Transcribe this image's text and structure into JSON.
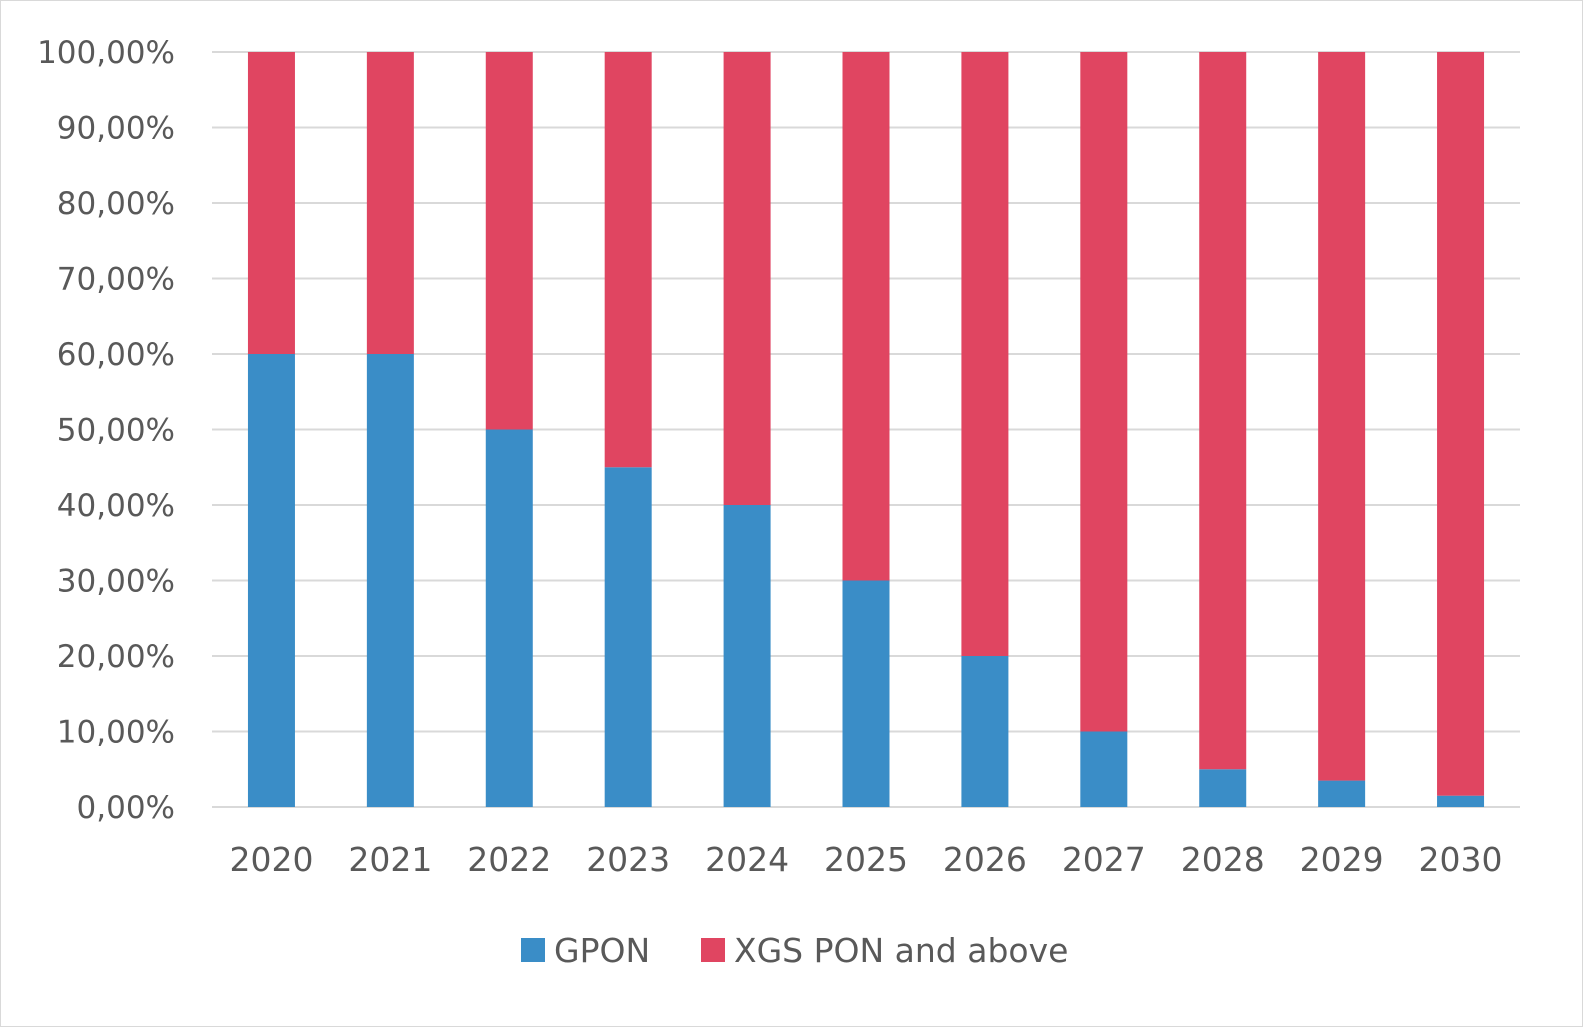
{
  "chart_data": {
    "type": "bar",
    "stacked": true,
    "categories": [
      "2020",
      "2021",
      "2022",
      "2023",
      "2024",
      "2025",
      "2026",
      "2027",
      "2028",
      "2029",
      "2030"
    ],
    "series": [
      {
        "name": "GPON",
        "color": "#3a8dc7",
        "values": [
          60,
          60,
          50,
          45,
          40,
          30,
          20,
          10,
          5,
          3.5,
          1.5
        ]
      },
      {
        "name": "XGS PON and above",
        "color": "#e04561",
        "values": [
          40,
          40,
          50,
          55,
          60,
          70,
          80,
          90,
          95,
          96.5,
          98.5
        ]
      }
    ],
    "ylim": [
      0,
      100
    ],
    "yticks": [
      0,
      10,
      20,
      30,
      40,
      50,
      60,
      70,
      80,
      90,
      100
    ],
    "ytick_labels": [
      "0,00%",
      "10,00%",
      "20,00%",
      "30,00%",
      "40,00%",
      "50,00%",
      "60,00%",
      "70,00%",
      "80,00%",
      "90,00%",
      "100,00%"
    ],
    "grid": true,
    "legend_position": "bottom",
    "gridline_color": "#d9d9d9"
  }
}
